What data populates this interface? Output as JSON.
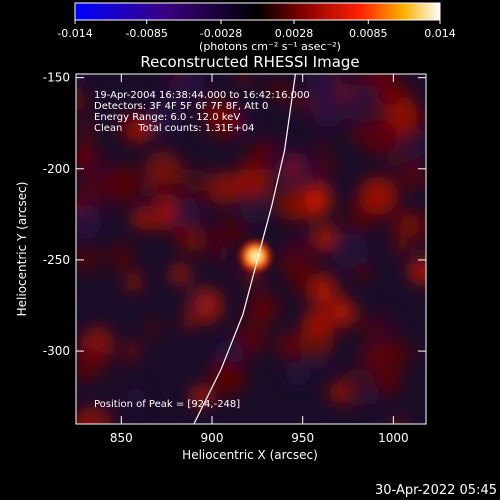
{
  "colorbar": {
    "ticks": [
      "-0.014",
      "-0.0085",
      "-0.0028",
      "0.0028",
      "0.0085",
      "0.014"
    ],
    "units_label": "(photons cm⁻² s⁻¹ asec⁻²)",
    "range": [
      -0.014,
      0.014
    ]
  },
  "chart_data": {
    "type": "heatmap",
    "title": "Reconstructed RHESSI Image",
    "xlabel": "Heliocentric X (arcsec)",
    "ylabel": "Heliocentric Y (arcsec)",
    "xlim": [
      825,
      1018
    ],
    "ylim": [
      -340,
      -148
    ],
    "xticks": [
      "850",
      "900",
      "950",
      "1000"
    ],
    "yticks": [
      "-150",
      "-200",
      "-250",
      "-300"
    ],
    "xtick_values": [
      850,
      900,
      950,
      1000
    ],
    "ytick_values": [
      -150,
      -200,
      -250,
      -300
    ],
    "annotations": [
      "19-Apr-2004 16:38:44.000 to 16:42:16.000",
      "Detectors: 3F 4F 5F 6F 7F 8F, Att 0",
      "Energy Range: 6.0 - 12.0 keV",
      "Clean     Total counts: 1.31E+04"
    ],
    "peak_label": "Position of Peak = [924,-248]",
    "peak": [
      924,
      -248
    ],
    "limb_curve_points": [
      [
        890,
        -340
      ],
      [
        905,
        -310
      ],
      [
        917,
        -280
      ],
      [
        925,
        -250
      ],
      [
        933,
        -220
      ],
      [
        940,
        -190
      ],
      [
        946,
        -148
      ]
    ]
  },
  "timestamp": "30-Apr-2022 05:45"
}
